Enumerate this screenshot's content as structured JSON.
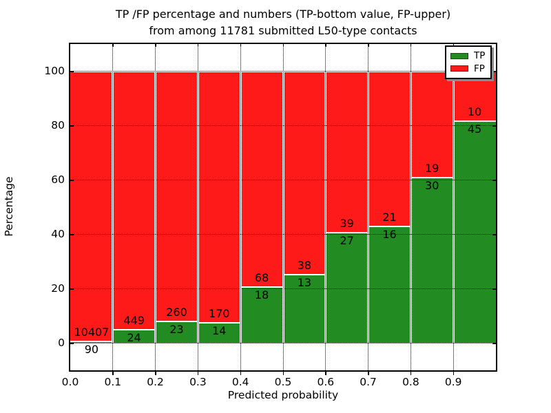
{
  "title": {
    "line1": "TP /FP percentage and numbers (TP-bottom value, FP-upper)",
    "line2": "from among 11781 submitted L50-type contacts"
  },
  "axes": {
    "xlabel": "Predicted probability",
    "ylabel": "Percentage",
    "x_tick_labels": [
      "0.0",
      "0.1",
      "0.2",
      "0.3",
      "0.4",
      "0.5",
      "0.6",
      "0.7",
      "0.8",
      "0.9"
    ],
    "y_tick_labels": [
      "0",
      "20",
      "40",
      "60",
      "80",
      "100"
    ],
    "y_tick_values": [
      0,
      20,
      40,
      60,
      80,
      100
    ],
    "xlim": [
      0.0,
      1.0
    ],
    "ylim": [
      -10,
      110
    ],
    "grid": "dotted black, horizontal and vertical"
  },
  "legend": {
    "position": "upper right",
    "items": [
      {
        "label": "TP",
        "color": "#228b22"
      },
      {
        "label": "FP",
        "color": "#ff1a1a"
      }
    ]
  },
  "chart_data": {
    "type": "bar",
    "stacked": true,
    "normalized": "each bin scaled to 100% (green TP bottom, red FP top)",
    "title": "TP /FP percentage and numbers (TP-bottom value, FP-upper) from among 11781 submitted L50-type contacts",
    "xlabel": "Predicted probability",
    "ylabel": "Percentage",
    "bin_edges": [
      0.0,
      0.1,
      0.2,
      0.3,
      0.4,
      0.5,
      0.6,
      0.7,
      0.8,
      0.9,
      1.0
    ],
    "series": [
      {
        "name": "TP",
        "color": "#228b22",
        "counts": [
          90,
          24,
          23,
          14,
          18,
          13,
          27,
          16,
          30,
          45
        ],
        "percent": [
          0.86,
          5.07,
          8.13,
          7.61,
          20.93,
          25.49,
          40.91,
          43.24,
          61.22,
          81.82
        ]
      },
      {
        "name": "FP",
        "color": "#ff1a1a",
        "counts": [
          10407,
          449,
          260,
          170,
          68,
          38,
          39,
          21,
          19,
          10
        ],
        "percent": [
          99.14,
          94.93,
          91.87,
          92.39,
          79.07,
          74.51,
          59.09,
          56.76,
          38.78,
          18.18
        ]
      }
    ],
    "bar_value_labels": "TP count printed below the TP/FP boundary, FP count printed above it",
    "total_submitted": 11781,
    "xlim": [
      0.0,
      1.0
    ],
    "ylim": [
      -10,
      110
    ],
    "legend_position": "upper right"
  },
  "colors": {
    "tp": "#228b22",
    "fp": "#ff1a1a",
    "background": "#ffffff",
    "grid": "#000000",
    "bar_edge": "#ffffff",
    "legend_shadow": "#8c8c8c"
  }
}
